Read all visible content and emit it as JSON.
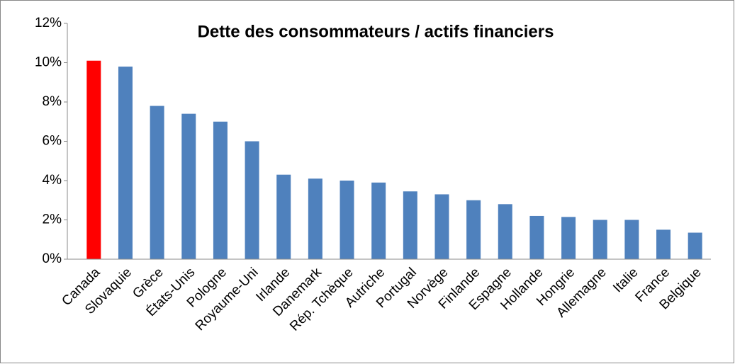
{
  "chart_data": {
    "type": "bar",
    "title": "Dette des consommateurs / actifs financiers",
    "categories": [
      "Canada",
      "Slovaquie",
      "Grèce",
      "États-Unis",
      "Pologne",
      "Royaume-Uni",
      "Irlande",
      "Danemark",
      "Rép. Tchèque",
      "Autriche",
      "Portugal",
      "Norvège",
      "Finlande",
      "Espagne",
      "Hollande",
      "Hongrie",
      "Allemagne",
      "Italie",
      "France",
      "Belgique"
    ],
    "values": [
      10.1,
      9.8,
      7.8,
      7.4,
      7.0,
      6.0,
      4.3,
      4.1,
      4.0,
      3.9,
      3.45,
      3.3,
      3.0,
      2.8,
      2.2,
      2.15,
      2.0,
      2.0,
      1.5,
      1.35
    ],
    "colors": [
      "#ff0000",
      "#4f81bd",
      "#4f81bd",
      "#4f81bd",
      "#4f81bd",
      "#4f81bd",
      "#4f81bd",
      "#4f81bd",
      "#4f81bd",
      "#4f81bd",
      "#4f81bd",
      "#4f81bd",
      "#4f81bd",
      "#4f81bd",
      "#4f81bd",
      "#4f81bd",
      "#4f81bd",
      "#4f81bd",
      "#4f81bd",
      "#4f81bd"
    ],
    "ylim": [
      0,
      12
    ],
    "yticks": [
      {
        "value": 0,
        "label": "0%"
      },
      {
        "value": 2,
        "label": "2%"
      },
      {
        "value": 4,
        "label": "4%"
      },
      {
        "value": 6,
        "label": "6%"
      },
      {
        "value": 8,
        "label": "8%"
      },
      {
        "value": 10,
        "label": "10%"
      },
      {
        "value": 12,
        "label": "12%"
      }
    ],
    "grid": false
  }
}
